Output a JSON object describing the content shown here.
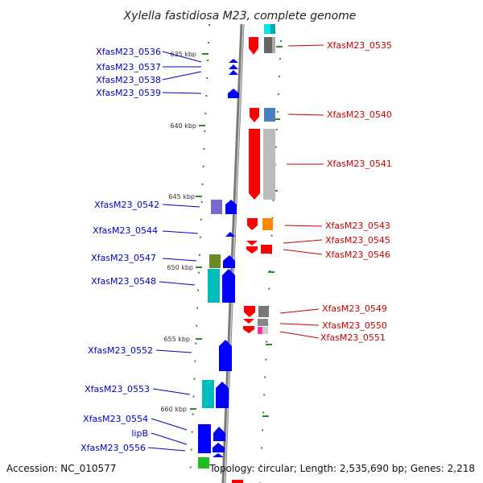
{
  "title": "Xylella fastidiosa M23, complete genome",
  "footer": {
    "accession": "Accession: NC_010577",
    "summary": "Topology: circular; Length: 2,535,690 bp; Genes: 2,218"
  },
  "scale_labels": [
    "635 kbp",
    "640 kbp",
    "645 kbp",
    "650 kbp",
    "655 kbp",
    "660 kbp"
  ],
  "left_genes": [
    "XfasM23_0536",
    "XfasM23_0537",
    "XfasM23_0538",
    "XfasM23_0539",
    "XfasM23_0542",
    "XfasM23_0544",
    "XfasM23_0547",
    "XfasM23_0548",
    "XfasM23_0552",
    "XfasM23_0553",
    "XfasM23_0554",
    "lipB",
    "XfasM23_0556"
  ],
  "right_genes": [
    "XfasM23_0535",
    "XfasM23_0540",
    "XfasM23_0541",
    "XfasM23_0543",
    "XfasM23_0545",
    "XfasM23_0546",
    "XfasM23_0549",
    "XfasM23_0550",
    "XfasM23_0551"
  ],
  "colors": {
    "forward_label": "#0000cc",
    "reverse_label": "#cc0000",
    "forward_gene": "#0000ff",
    "reverse_gene": "#ff0000",
    "tick": "#2a8a2a",
    "backbone": "#888888"
  }
}
